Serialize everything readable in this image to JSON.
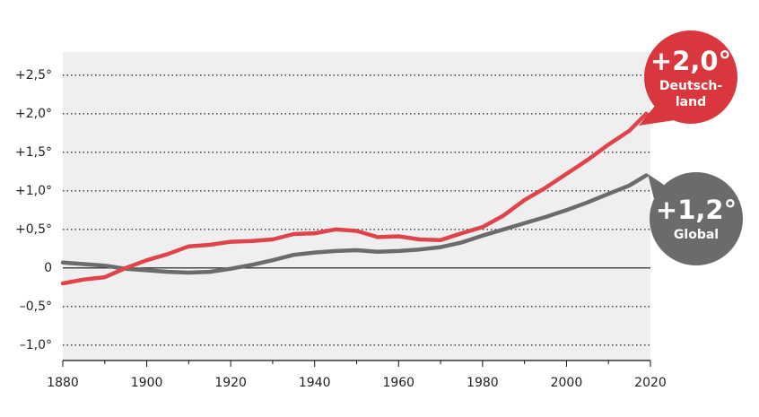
{
  "chart_data": {
    "type": "line",
    "x": [
      1880,
      1885,
      1890,
      1895,
      1900,
      1905,
      1910,
      1915,
      1920,
      1925,
      1930,
      1935,
      1940,
      1945,
      1950,
      1955,
      1960,
      1965,
      1970,
      1975,
      1980,
      1985,
      1990,
      1995,
      2000,
      2005,
      2010,
      2015,
      2019
    ],
    "series": [
      {
        "name_lines": [
          "Deutsch-",
          "land"
        ],
        "end_label": "+2,0°",
        "color": "#e0444a",
        "values": [
          -0.2,
          -0.15,
          -0.12,
          0.0,
          0.1,
          0.18,
          0.28,
          0.3,
          0.34,
          0.35,
          0.37,
          0.44,
          0.45,
          0.5,
          0.48,
          0.4,
          0.41,
          0.37,
          0.36,
          0.45,
          0.53,
          0.68,
          0.88,
          1.04,
          1.22,
          1.4,
          1.6,
          1.78,
          2.0
        ]
      },
      {
        "name_lines": [
          "Global"
        ],
        "end_label": "+1,2°",
        "color": "#6b6b6b",
        "values": [
          0.07,
          0.05,
          0.03,
          -0.01,
          -0.03,
          -0.05,
          -0.06,
          -0.05,
          -0.01,
          0.04,
          0.1,
          0.17,
          0.2,
          0.22,
          0.23,
          0.21,
          0.22,
          0.24,
          0.27,
          0.33,
          0.42,
          0.5,
          0.58,
          0.66,
          0.75,
          0.85,
          0.96,
          1.07,
          1.2
        ]
      }
    ],
    "xlim": [
      1880,
      2020
    ],
    "xticks": [
      1880,
      1900,
      1920,
      1940,
      1960,
      1980,
      2000,
      2020
    ],
    "xminorticks": [
      1890,
      1910,
      1930,
      1950,
      1970,
      1990,
      2010
    ],
    "ylim": [
      -1.2,
      2.8
    ],
    "yticks": [
      {
        "value": -1.0,
        "label": "–1,0°"
      },
      {
        "value": -0.5,
        "label": "–0,5°"
      },
      0,
      {
        "value": 0.5,
        "label": "+0,5°"
      },
      {
        "value": 1.0,
        "label": "+1,0°"
      },
      {
        "value": 1.5,
        "label": "+1,5°"
      },
      {
        "value": 2.0,
        "label": "+2,0°"
      },
      {
        "value": 2.5,
        "label": "+2,5°"
      }
    ],
    "grid": true
  }
}
